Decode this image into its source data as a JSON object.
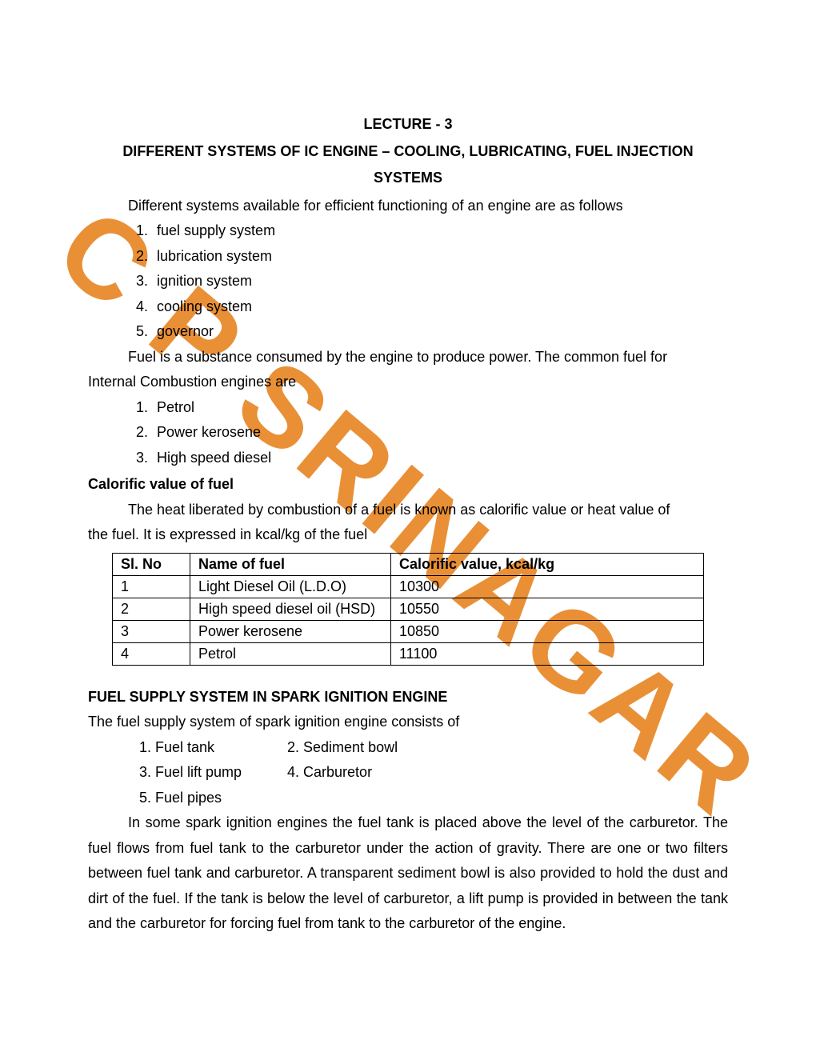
{
  "watermark": {
    "text": "C P SRINAGAR",
    "color": "#e88b2d"
  },
  "lecture_no": "LECTURE - 3",
  "title_line1": "DIFFERENT SYSTEMS OF IC ENGINE – COOLING, LUBRICATING, FUEL INJECTION",
  "title_line2": "SYSTEMS",
  "intro": "Different systems available for efficient functioning of an engine are as follows",
  "systems": [
    "fuel supply system",
    "lubrication system",
    "ignition system",
    "cooling system",
    "governor"
  ],
  "fuel_para1": "Fuel is a substance consumed by the engine to produce power. The common fuel for",
  "fuel_para2": "Internal Combustion engines are",
  "fuels_list": [
    "Petrol",
    "Power kerosene",
    "High speed diesel"
  ],
  "calorific_heading": "Calorific value of fuel",
  "calorific_para1": "The heat liberated by combustion of a fuel is known as calorific value or heat value of",
  "calorific_para2": "the fuel. It is expressed in kcal/kg of the fuel",
  "table": {
    "headers": {
      "sl": "Sl. No",
      "name": "Name of fuel",
      "val": "Calorific value, kcal/kg"
    },
    "rows": [
      {
        "sl": "1",
        "name": "Light Diesel Oil (L.D.O)",
        "val": "10300"
      },
      {
        "sl": "2",
        "name": "High speed diesel oil (HSD)",
        "val": "10550"
      },
      {
        "sl": "3",
        "name": "Power kerosene",
        "val": "10850"
      },
      {
        "sl": "4",
        "name": "Petrol",
        "val": "11100"
      }
    ]
  },
  "fss_heading": "FUEL SUPPLY SYSTEM IN SPARK IGNITION ENGINE",
  "fss_intro": "The fuel supply system of spark ignition engine consists of",
  "fss_components": {
    "c1": "1. Fuel tank",
    "c2": "2. Sediment bowl",
    "c3": "3. Fuel lift pump",
    "c4": "4. Carburetor",
    "c5": "5. Fuel pipes"
  },
  "fss_body": "In some spark ignition engines the fuel tank is placed above the level of the carburetor. The fuel flows from fuel tank to the carburetor under the action of gravity. There are one or two filters between fuel tank and carburetor. A transparent sediment bowl is also provided to hold the dust and dirt of the fuel. If the tank is below the level of carburetor, a lift pump is provided in between the tank and the carburetor for forcing fuel from tank to the carburetor of the engine."
}
